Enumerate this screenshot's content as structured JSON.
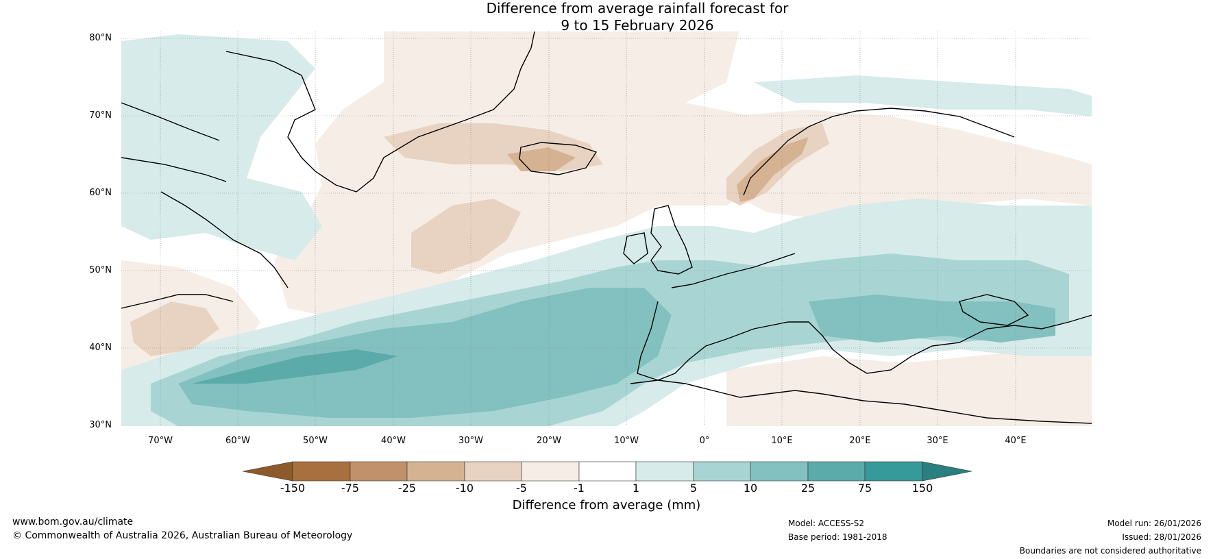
{
  "title": {
    "line1": "Difference from average rainfall forecast for",
    "line2": "9 to 15 February 2026"
  },
  "map": {
    "latitude_labels": [
      "80°N",
      "70°N",
      "60°N",
      "50°N",
      "40°N",
      "30°N"
    ],
    "longitude_labels": [
      "70°W",
      "60°W",
      "50°W",
      "40°W",
      "30°W",
      "20°W",
      "10°W",
      "0°",
      "10°E",
      "20°E",
      "30°E",
      "40°E"
    ]
  },
  "legend": {
    "ticks": [
      "-150",
      "-75",
      "-25",
      "-10",
      "-5",
      "-1",
      "1",
      "5",
      "10",
      "25",
      "75",
      "150"
    ],
    "colors": {
      "dry_extreme": "#8c5a2b",
      "dry_150": "#a8703e",
      "dry_75": "#c0916a",
      "dry_25": "#d5b292",
      "dry_10": "#e8d3c2",
      "dry_5": "#f5ede6",
      "neutral": "#ffffff",
      "wet_1": "#d6ebea",
      "wet_5": "#a8d5d3",
      "wet_10": "#82c1bf",
      "wet_25": "#5aabaa",
      "wet_75": "#36999a",
      "wet_extreme": "#2a7f80"
    },
    "label": "Difference from average (mm)"
  },
  "footer": {
    "website": "www.bom.gov.au/climate",
    "copyright": "© Commonwealth of Australia 2026, Australian Bureau of Meteorology",
    "model": "Model: ACCESS-S2",
    "base_period": "Base period: 1981-2018",
    "model_run": "Model run: 26/01/2026",
    "issued": "Issued: 28/01/2026",
    "disclaimer": "Boundaries are not considered authoritative"
  }
}
